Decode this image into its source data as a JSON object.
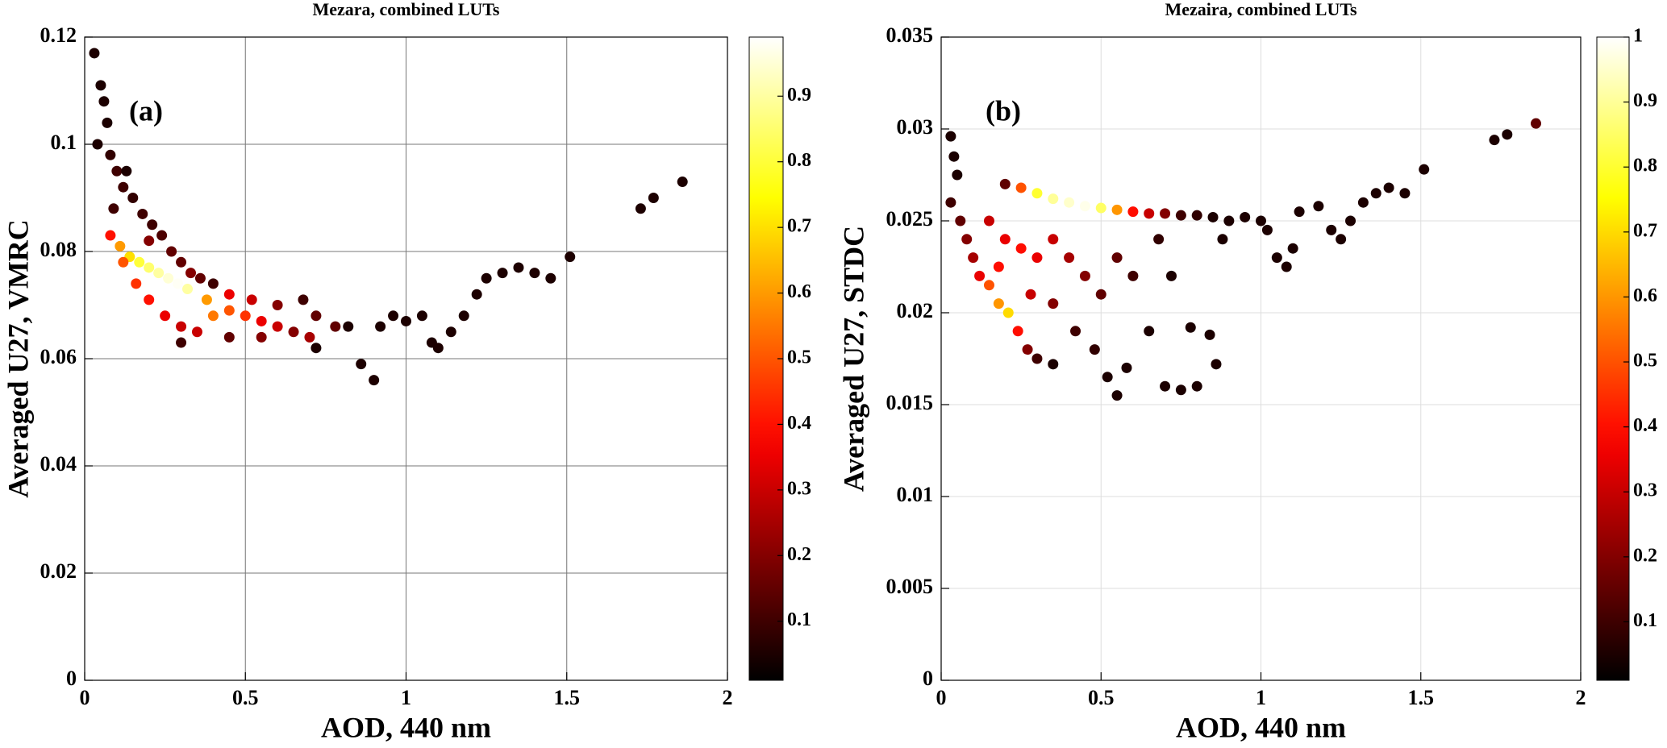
{
  "chart_data": [
    {
      "type": "scatter",
      "title": "Mezara, combined LUTs",
      "annotation": "(a)",
      "xlabel": "AOD, 440 nm",
      "ylabel": "Averaged U27, VMRC",
      "xlim": [
        0,
        2
      ],
      "xticks": [
        0,
        0.5,
        1,
        1.5,
        2
      ],
      "ylim": [
        0,
        0.12
      ],
      "yticks": [
        0,
        0.02,
        0.04,
        0.06,
        0.08,
        0.1,
        0.12
      ],
      "clim": [
        0.01,
        0.99
      ],
      "cticks": [
        0.1,
        0.2,
        0.3,
        0.4,
        0.5,
        0.6,
        0.7,
        0.8,
        0.9
      ],
      "colormap": "hot",
      "grid": true,
      "x": [
        0.03,
        0.05,
        0.06,
        0.07,
        0.04,
        0.08,
        0.1,
        0.12,
        0.15,
        0.18,
        0.21,
        0.24,
        0.27,
        0.3,
        0.33,
        0.36,
        0.4,
        0.13,
        0.09,
        0.2,
        0.08,
        0.11,
        0.14,
        0.17,
        0.2,
        0.23,
        0.26,
        0.29,
        0.32,
        0.12,
        0.16,
        0.2,
        0.25,
        0.3,
        0.35,
        0.4,
        0.45,
        0.5,
        0.55,
        0.6,
        0.38,
        0.45,
        0.52,
        0.6,
        0.68,
        0.72,
        0.78,
        0.65,
        0.7,
        0.3,
        0.45,
        0.55,
        0.72,
        0.82,
        0.86,
        0.9,
        0.92,
        0.96,
        1.0,
        1.05,
        1.08,
        1.1,
        1.14,
        1.18,
        1.22,
        1.25,
        1.3,
        1.35,
        1.4,
        1.45,
        1.51,
        1.73,
        1.77,
        1.86
      ],
      "y": [
        0.117,
        0.111,
        0.108,
        0.104,
        0.1,
        0.098,
        0.095,
        0.092,
        0.09,
        0.087,
        0.085,
        0.083,
        0.08,
        0.078,
        0.076,
        0.075,
        0.074,
        0.095,
        0.088,
        0.082,
        0.083,
        0.081,
        0.079,
        0.078,
        0.077,
        0.076,
        0.075,
        0.074,
        0.073,
        0.078,
        0.074,
        0.071,
        0.068,
        0.066,
        0.065,
        0.068,
        0.069,
        0.068,
        0.067,
        0.066,
        0.071,
        0.072,
        0.071,
        0.07,
        0.071,
        0.068,
        0.066,
        0.065,
        0.064,
        0.063,
        0.064,
        0.064,
        0.062,
        0.066,
        0.059,
        0.056,
        0.066,
        0.068,
        0.067,
        0.068,
        0.063,
        0.062,
        0.065,
        0.068,
        0.072,
        0.075,
        0.076,
        0.077,
        0.076,
        0.075,
        0.079,
        0.088,
        0.09,
        0.093
      ],
      "c": [
        0.05,
        0.05,
        0.05,
        0.05,
        0.05,
        0.08,
        0.1,
        0.1,
        0.08,
        0.1,
        0.1,
        0.12,
        0.15,
        0.15,
        0.2,
        0.15,
        0.1,
        0.05,
        0.1,
        0.2,
        0.4,
        0.6,
        0.7,
        0.8,
        0.85,
        0.9,
        0.95,
        0.98,
        0.9,
        0.5,
        0.45,
        0.4,
        0.35,
        0.3,
        0.3,
        0.55,
        0.5,
        0.45,
        0.35,
        0.3,
        0.6,
        0.35,
        0.3,
        0.2,
        0.1,
        0.15,
        0.15,
        0.2,
        0.25,
        0.1,
        0.15,
        0.2,
        0.05,
        0.05,
        0.05,
        0.05,
        0.05,
        0.05,
        0.05,
        0.05,
        0.05,
        0.05,
        0.05,
        0.05,
        0.05,
        0.05,
        0.05,
        0.05,
        0.05,
        0.05,
        0.05,
        0.05,
        0.05,
        0.05
      ]
    },
    {
      "type": "scatter",
      "title": "Mezaira, combined LUTs",
      "annotation": "(b)",
      "xlabel": "AOD, 440 nm",
      "ylabel": "Averaged U27, STDC",
      "xlim": [
        0,
        2
      ],
      "xticks": [
        0,
        0.5,
        1,
        1.5,
        2
      ],
      "ylim": [
        0,
        0.035
      ],
      "yticks": [
        0,
        0.005,
        0.01,
        0.015,
        0.02,
        0.025,
        0.03,
        0.035
      ],
      "clim": [
        0.01,
        1
      ],
      "cticks": [
        0.1,
        0.2,
        0.3,
        0.4,
        0.5,
        0.6,
        0.7,
        0.8,
        0.9,
        1
      ],
      "colormap": "hot",
      "grid": true,
      "x": [
        0.03,
        0.04,
        0.05,
        0.03,
        0.06,
        0.08,
        0.1,
        0.12,
        0.15,
        0.18,
        0.21,
        0.24,
        0.27,
        0.3,
        0.35,
        0.2,
        0.25,
        0.3,
        0.35,
        0.4,
        0.45,
        0.5,
        0.55,
        0.6,
        0.65,
        0.7,
        0.75,
        0.8,
        0.85,
        0.9,
        0.95,
        1.0,
        0.15,
        0.2,
        0.25,
        0.3,
        0.35,
        0.4,
        0.18,
        0.28,
        0.35,
        0.45,
        0.5,
        0.55,
        0.6,
        0.42,
        0.48,
        0.52,
        0.55,
        0.58,
        0.65,
        0.7,
        0.75,
        0.8,
        0.86,
        0.78,
        0.84,
        0.72,
        0.68,
        0.88,
        1.02,
        1.05,
        1.08,
        1.1,
        1.12,
        1.18,
        1.22,
        1.25,
        1.28,
        1.32,
        1.36,
        1.4,
        1.45,
        1.51,
        1.73,
        1.77,
        1.86
      ],
      "y": [
        0.0296,
        0.0285,
        0.0275,
        0.026,
        0.025,
        0.024,
        0.023,
        0.022,
        0.0215,
        0.0205,
        0.02,
        0.019,
        0.018,
        0.0175,
        0.0172,
        0.027,
        0.0268,
        0.0265,
        0.0262,
        0.026,
        0.0258,
        0.0257,
        0.0256,
        0.0255,
        0.0254,
        0.0254,
        0.0253,
        0.0253,
        0.0252,
        0.025,
        0.0252,
        0.025,
        0.025,
        0.024,
        0.0235,
        0.023,
        0.024,
        0.023,
        0.0225,
        0.021,
        0.0205,
        0.022,
        0.021,
        0.023,
        0.022,
        0.019,
        0.018,
        0.0165,
        0.0155,
        0.017,
        0.019,
        0.016,
        0.0158,
        0.016,
        0.0172,
        0.0192,
        0.0188,
        0.022,
        0.024,
        0.024,
        0.0245,
        0.023,
        0.0225,
        0.0235,
        0.0255,
        0.0258,
        0.0245,
        0.024,
        0.025,
        0.026,
        0.0265,
        0.0268,
        0.0265,
        0.0278,
        0.0294,
        0.0297,
        0.0303
      ],
      "c": [
        0.05,
        0.05,
        0.05,
        0.1,
        0.15,
        0.2,
        0.25,
        0.35,
        0.5,
        0.6,
        0.7,
        0.4,
        0.2,
        0.1,
        0.05,
        0.15,
        0.5,
        0.8,
        0.9,
        0.95,
        0.98,
        0.85,
        0.6,
        0.4,
        0.3,
        0.2,
        0.1,
        0.08,
        0.05,
        0.05,
        0.05,
        0.05,
        0.3,
        0.35,
        0.4,
        0.35,
        0.3,
        0.25,
        0.4,
        0.3,
        0.2,
        0.2,
        0.15,
        0.15,
        0.1,
        0.1,
        0.08,
        0.05,
        0.05,
        0.05,
        0.05,
        0.05,
        0.05,
        0.05,
        0.05,
        0.05,
        0.05,
        0.05,
        0.08,
        0.05,
        0.05,
        0.05,
        0.05,
        0.05,
        0.05,
        0.05,
        0.05,
        0.05,
        0.05,
        0.05,
        0.05,
        0.05,
        0.05,
        0.05,
        0.05,
        0.05,
        0.15
      ]
    }
  ]
}
